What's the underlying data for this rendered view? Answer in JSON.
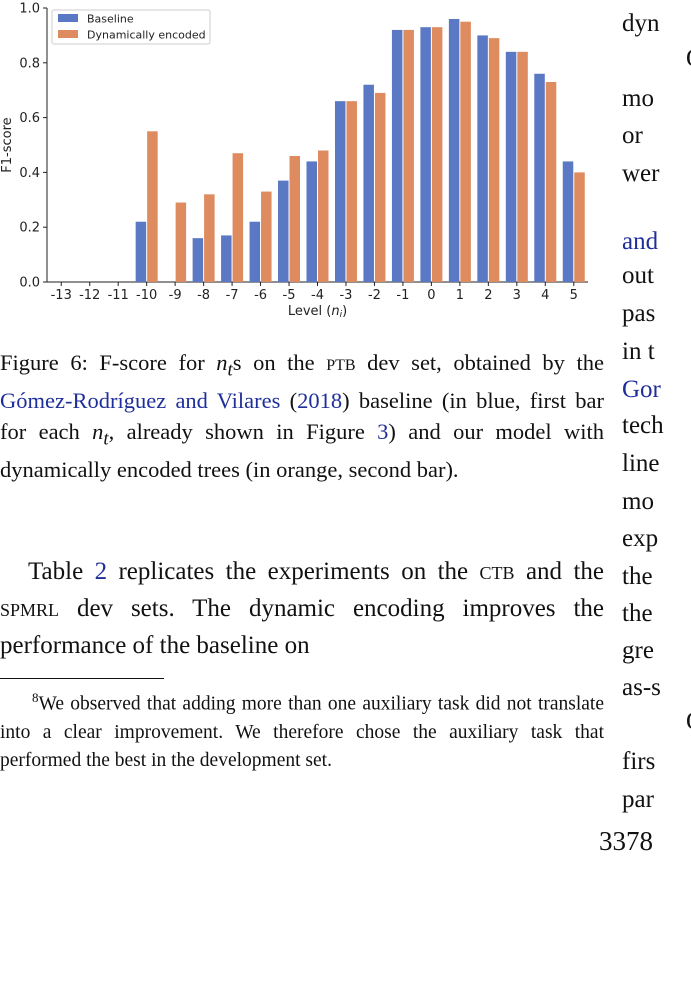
{
  "chart_data": {
    "type": "bar",
    "categories": [
      "-13",
      "-12",
      "-11",
      "-10",
      "-9",
      "-8",
      "-7",
      "-6",
      "-5",
      "-4",
      "-3",
      "-2",
      "-1",
      "0",
      "1",
      "2",
      "3",
      "4",
      "5"
    ],
    "series": [
      {
        "name": "Baseline",
        "color": "#5a78c3",
        "values": [
          0,
          0,
          0,
          0.22,
          0,
          0.16,
          0.17,
          0.22,
          0.37,
          0.44,
          0.66,
          0.72,
          0.92,
          0.93,
          0.96,
          0.9,
          0.84,
          0.76,
          0.44
        ]
      },
      {
        "name": "Dynamically encoded",
        "color": "#dd8b5f",
        "values": [
          0,
          0,
          0,
          0.55,
          0.29,
          0.32,
          0.47,
          0.33,
          0.46,
          0.48,
          0.66,
          0.69,
          0.92,
          0.93,
          0.95,
          0.89,
          0.84,
          0.73,
          0.4
        ]
      }
    ],
    "xlabel": "Level (n_i)",
    "ylabel": "F1-score",
    "ylim": [
      0,
      1.0
    ],
    "yticks": [
      "0.0",
      "0.2",
      "0.4",
      "0.6",
      "0.8",
      "1.0"
    ],
    "grid": false,
    "legend": "top-left"
  },
  "caption": {
    "t1": "Figure 6:  F-score for ",
    "math1": "n",
    "math1_sub": "t",
    "t2": "s on the ",
    "sc1": "ptb",
    "t3": " dev set, obtained by the ",
    "cite1": "Gómez-Rodríguez and Vilares",
    "t4": " (",
    "cite2": "2018",
    "t5": ") baseline (in blue, first bar for each ",
    "math2": "n",
    "math2_sub": "t",
    "t6": ", already shown in Figure ",
    "cite3": "3",
    "t7": ") and our model with dynamically encoded trees (in orange, second bar)."
  },
  "paragraph": {
    "t1": "Table ",
    "ref": "2",
    "t2": " replicates the experiments on the ",
    "sc1": "ctb",
    "t3": " and the ",
    "sc2": "spmrl",
    "t4": " dev sets.  The dynamic encoding improves the performance of the baseline on"
  },
  "footnote": {
    "mark": "8",
    "text": "We observed that adding more than one auxiliary task did not translate into a clear improvement.  We therefore chose the auxiliary task that performed the best in the development set."
  },
  "right_column": {
    "lines": [
      "dyn",
      "O",
      "mo",
      "or",
      "wer",
      "and",
      "out",
      "pas",
      "in t",
      "Gor",
      "tech",
      "line",
      "mo",
      "exp",
      "the",
      "the",
      "gre",
      "as-s",
      "O",
      "firs",
      "par"
    ]
  },
  "page_number": "3378"
}
